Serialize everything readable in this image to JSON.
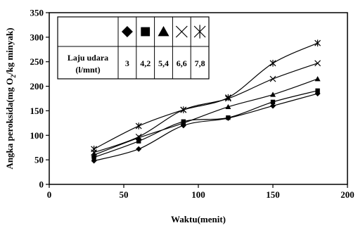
{
  "chart_data": {
    "type": "line",
    "xlabel": "Waktu(menit)",
    "ylabel_parts": [
      "Angka peroksida(mg O",
      "2",
      "/kg minyak)"
    ],
    "xlim": [
      0,
      200
    ],
    "ylim": [
      0,
      350
    ],
    "xticks": [
      0,
      50,
      100,
      150,
      200
    ],
    "yticks": [
      0,
      50,
      100,
      150,
      200,
      250,
      300,
      350
    ],
    "grid": false,
    "legend": {
      "placement": "top-left inside plot",
      "header_label": [
        "Laju udara",
        "(l/mnt)"
      ]
    },
    "x": [
      30,
      60,
      90,
      120,
      150,
      180
    ],
    "series": [
      {
        "name": "3",
        "marker": "diamond",
        "values": [
          48,
          72,
          120,
          135,
          160,
          185
        ]
      },
      {
        "name": "4,2",
        "marker": "square",
        "values": [
          55,
          88,
          128,
          136,
          168,
          191
        ]
      },
      {
        "name": "5,4",
        "marker": "triangle",
        "values": [
          60,
          95,
          125,
          158,
          183,
          215
        ]
      },
      {
        "name": "6,6",
        "marker": "x",
        "values": [
          65,
          97,
          152,
          175,
          215,
          247
        ]
      },
      {
        "name": "7,8",
        "marker": "asterisk",
        "values": [
          72,
          119,
          152,
          177,
          247,
          288
        ]
      }
    ]
  }
}
